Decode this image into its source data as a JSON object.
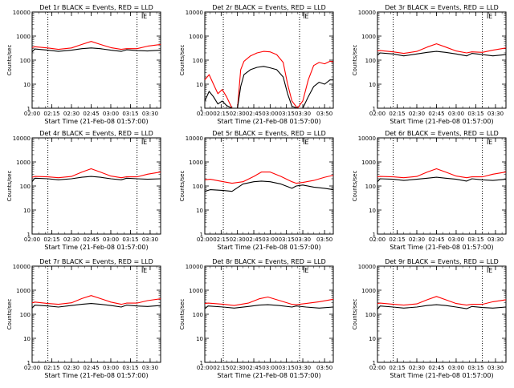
{
  "colors": {
    "events": "#000000",
    "lld": "#ff0000",
    "axis": "#000000",
    "background": "#ffffff"
  },
  "chart_data": [
    {
      "type": "line",
      "title": "Det 1r BLACK = Events, RED = LLD",
      "xlabel": "Start Time (21-Feb-08 01:57:00)",
      "ylabel": "Counts/sec",
      "yscale": "log",
      "ylim": [
        1,
        10000
      ],
      "yticks": [
        "1",
        "10",
        "100",
        "1000",
        "10000"
      ],
      "xlim": [
        "02:00",
        "03:38"
      ],
      "xticks": [
        "02:00",
        "02:15",
        "02:30",
        "02:45",
        "03:00",
        "03:15",
        "03:30"
      ],
      "vlines": [
        "02:12",
        "03:20"
      ],
      "marker_label": "E",
      "marker_x": "03:24",
      "grid": false,
      "series": [
        {
          "name": "Events",
          "color": "#000000",
          "x": [
            "02:00",
            "02:02",
            "02:12",
            "02:20",
            "02:30",
            "02:38",
            "02:45",
            "02:52",
            "03:00",
            "03:08",
            "03:12",
            "03:20",
            "03:28",
            "03:38"
          ],
          "values": [
            220,
            290,
            260,
            230,
            260,
            300,
            320,
            300,
            260,
            230,
            270,
            250,
            240,
            260
          ]
        },
        {
          "name": "LLD",
          "color": "#ff0000",
          "x": [
            "02:00",
            "02:02",
            "02:12",
            "02:20",
            "02:30",
            "02:38",
            "02:45",
            "02:52",
            "03:00",
            "03:08",
            "03:12",
            "03:20",
            "03:28",
            "03:38"
          ],
          "values": [
            330,
            360,
            320,
            280,
            320,
            450,
            600,
            450,
            330,
            280,
            300,
            300,
            380,
            450
          ]
        }
      ]
    },
    {
      "type": "line",
      "title": "Det 2r BLACK = Events, RED = LLD",
      "xlabel": "Start Time (21-Feb-08 01:57:00)",
      "ylabel": "Counts/sec",
      "yscale": "log",
      "ylim": [
        1,
        10000
      ],
      "yticks": [
        "1",
        "10",
        "100",
        "1000",
        "10000"
      ],
      "xlim": [
        "02:00",
        "03:58"
      ],
      "xticks": [
        "02:00",
        "02:15",
        "02:30",
        "02:45",
        "03:00",
        "03:15",
        "03:30",
        "03:50"
      ],
      "vlines": [
        "02:17",
        "03:27"
      ],
      "marker_label": "E",
      "marker_x": "03:31",
      "grid": false,
      "series": [
        {
          "name": "Events",
          "color": "#000000",
          "x": [
            "02:00",
            "02:04",
            "02:08",
            "02:12",
            "02:16",
            "02:20",
            "02:25",
            "02:30",
            "02:33",
            "02:36",
            "02:42",
            "02:48",
            "02:54",
            "03:00",
            "03:06",
            "03:12",
            "03:16",
            "03:20",
            "03:25",
            "03:30",
            "03:35",
            "03:40",
            "03:45",
            "03:50",
            "03:55",
            "03:58"
          ],
          "values": [
            2,
            5,
            3,
            1.5,
            2,
            1.3,
            1,
            1,
            8,
            25,
            40,
            50,
            55,
            48,
            40,
            20,
            4,
            1.2,
            1,
            1,
            3,
            8,
            12,
            10,
            15,
            15
          ]
        },
        {
          "name": "LLD",
          "color": "#ff0000",
          "x": [
            "02:00",
            "02:04",
            "02:08",
            "02:12",
            "02:16",
            "02:20",
            "02:25",
            "02:30",
            "02:33",
            "02:36",
            "02:42",
            "02:48",
            "02:54",
            "03:00",
            "03:06",
            "03:12",
            "03:16",
            "03:20",
            "03:25",
            "03:30",
            "03:35",
            "03:40",
            "03:45",
            "03:50",
            "03:55",
            "03:58"
          ],
          "values": [
            15,
            25,
            10,
            4,
            6,
            3,
            1,
            1,
            40,
            90,
            150,
            200,
            230,
            220,
            170,
            80,
            10,
            2,
            1,
            2,
            15,
            60,
            80,
            70,
            90,
            85
          ]
        }
      ]
    },
    {
      "type": "line",
      "title": "Det 3r BLACK = Events, RED = LLD",
      "xlabel": "Start Time (21-Feb-08 01:57:00)",
      "ylabel": "Counts/sec",
      "yscale": "log",
      "ylim": [
        1,
        10000
      ],
      "yticks": [
        "1",
        "10",
        "100",
        "1000",
        "10000"
      ],
      "xlim": [
        "02:00",
        "03:38"
      ],
      "xticks": [
        "02:00",
        "02:15",
        "02:30",
        "02:45",
        "03:00",
        "03:15",
        "03:30"
      ],
      "vlines": [
        "02:12",
        "03:20"
      ],
      "marker_label": "E",
      "marker_x": "03:24",
      "grid": false,
      "series": [
        {
          "name": "Events",
          "color": "#000000",
          "x": [
            "02:00",
            "02:02",
            "02:12",
            "02:20",
            "02:30",
            "02:38",
            "02:45",
            "02:52",
            "03:00",
            "03:08",
            "03:12",
            "03:20",
            "03:28",
            "03:38"
          ],
          "values": [
            160,
            200,
            180,
            150,
            180,
            210,
            230,
            210,
            180,
            150,
            190,
            170,
            150,
            170
          ]
        },
        {
          "name": "LLD",
          "color": "#ff0000",
          "x": [
            "02:00",
            "02:02",
            "02:12",
            "02:20",
            "02:30",
            "02:38",
            "02:45",
            "02:52",
            "03:00",
            "03:08",
            "03:12",
            "03:20",
            "03:28",
            "03:38"
          ],
          "values": [
            240,
            250,
            220,
            190,
            230,
            350,
            480,
            350,
            240,
            200,
            220,
            210,
            260,
            320
          ]
        }
      ]
    },
    {
      "type": "line",
      "title": "Det 4r BLACK = Events, RED = LLD",
      "xlabel": "Start Time (21-Feb-08 01:57:00)",
      "ylabel": "Counts/sec",
      "yscale": "log",
      "ylim": [
        1,
        10000
      ],
      "yticks": [
        "1",
        "10",
        "100",
        "1000",
        "10000"
      ],
      "xlim": [
        "02:00",
        "03:38"
      ],
      "xticks": [
        "02:00",
        "02:15",
        "02:30",
        "02:45",
        "03:00",
        "03:15",
        "03:30"
      ],
      "vlines": [
        "02:12",
        "03:20"
      ],
      "marker_label": "E",
      "marker_x": "03:24",
      "grid": false,
      "series": [
        {
          "name": "Events",
          "color": "#000000",
          "x": [
            "02:00",
            "02:02",
            "02:12",
            "02:20",
            "02:30",
            "02:38",
            "02:45",
            "02:52",
            "03:00",
            "03:08",
            "03:12",
            "03:20",
            "03:28",
            "03:38"
          ],
          "values": [
            150,
            210,
            200,
            180,
            200,
            230,
            250,
            230,
            200,
            180,
            210,
            200,
            190,
            200
          ]
        },
        {
          "name": "LLD",
          "color": "#ff0000",
          "x": [
            "02:00",
            "02:02",
            "02:12",
            "02:20",
            "02:30",
            "02:38",
            "02:45",
            "02:52",
            "03:00",
            "03:08",
            "03:12",
            "03:20",
            "03:28",
            "03:38"
          ],
          "values": [
            230,
            250,
            240,
            220,
            250,
            380,
            520,
            380,
            260,
            220,
            240,
            240,
            310,
            380
          ]
        }
      ]
    },
    {
      "type": "line",
      "title": "Det 5r BLACK = Events, RED = LLD",
      "xlabel": "Start Time (21-Feb-08 01:57:00)",
      "ylabel": "Counts/sec",
      "yscale": "log",
      "ylim": [
        1,
        10000
      ],
      "yticks": [
        "1",
        "10",
        "100",
        "1000",
        "10000"
      ],
      "xlim": [
        "02:00",
        "03:58"
      ],
      "xticks": [
        "02:00",
        "02:15",
        "02:30",
        "02:45",
        "03:00",
        "03:15",
        "03:30",
        "03:50"
      ],
      "vlines": [
        "02:17",
        "03:27"
      ],
      "marker_label": "E",
      "marker_x": "03:31",
      "grid": false,
      "series": [
        {
          "name": "Events",
          "color": "#000000",
          "x": [
            "02:00",
            "02:05",
            "02:17",
            "02:25",
            "02:35",
            "02:45",
            "02:52",
            "03:00",
            "03:10",
            "03:20",
            "03:24",
            "03:30",
            "03:40",
            "03:50",
            "03:58"
          ],
          "values": [
            60,
            70,
            65,
            60,
            120,
            150,
            160,
            150,
            120,
            80,
            100,
            110,
            90,
            80,
            70
          ]
        },
        {
          "name": "LLD",
          "color": "#ff0000",
          "x": [
            "02:00",
            "02:05",
            "02:17",
            "02:25",
            "02:35",
            "02:45",
            "02:52",
            "03:00",
            "03:10",
            "03:20",
            "03:24",
            "03:30",
            "03:40",
            "03:50",
            "03:58"
          ],
          "values": [
            180,
            190,
            150,
            130,
            150,
            250,
            380,
            380,
            250,
            150,
            130,
            140,
            170,
            230,
            280
          ]
        }
      ]
    },
    {
      "type": "line",
      "title": "Det 6r BLACK = Events, RED = LLD",
      "xlabel": "Start Time (21-Feb-08 01:57:00)",
      "ylabel": "Counts/sec",
      "yscale": "log",
      "ylim": [
        1,
        10000
      ],
      "yticks": [
        "1",
        "10",
        "100",
        "1000",
        "10000"
      ],
      "xlim": [
        "02:00",
        "03:38"
      ],
      "xticks": [
        "02:00",
        "02:15",
        "02:30",
        "02:45",
        "03:00",
        "03:15",
        "03:30"
      ],
      "vlines": [
        "02:12",
        "03:20"
      ],
      "marker_label": "E",
      "marker_x": "03:24",
      "grid": false,
      "series": [
        {
          "name": "Events",
          "color": "#000000",
          "x": [
            "02:00",
            "02:02",
            "02:12",
            "02:20",
            "02:30",
            "02:38",
            "02:45",
            "02:52",
            "03:00",
            "03:08",
            "03:12",
            "03:20",
            "03:28",
            "03:38"
          ],
          "values": [
            150,
            200,
            190,
            170,
            190,
            210,
            230,
            210,
            190,
            160,
            200,
            180,
            170,
            190
          ]
        },
        {
          "name": "LLD",
          "color": "#ff0000",
          "x": [
            "02:00",
            "02:02",
            "02:12",
            "02:20",
            "02:30",
            "02:38",
            "02:45",
            "02:52",
            "03:00",
            "03:08",
            "03:12",
            "03:20",
            "03:28",
            "03:38"
          ],
          "values": [
            240,
            250,
            240,
            220,
            250,
            380,
            520,
            380,
            260,
            220,
            240,
            240,
            310,
            380
          ]
        }
      ]
    },
    {
      "type": "line",
      "title": "Det 7r BLACK = Events, RED = LLD",
      "xlabel": "Start Time (21-Feb-08 01:57:00)",
      "ylabel": "Counts/sec",
      "yscale": "log",
      "ylim": [
        1,
        10000
      ],
      "yticks": [
        "1",
        "10",
        "100",
        "1000",
        "10000"
      ],
      "xlim": [
        "02:00",
        "03:38"
      ],
      "xticks": [
        "02:00",
        "02:15",
        "02:30",
        "02:45",
        "03:00",
        "03:15",
        "03:30"
      ],
      "vlines": [
        "02:12",
        "03:20"
      ],
      "marker_label": "E",
      "marker_x": "03:24",
      "grid": false,
      "series": [
        {
          "name": "Events",
          "color": "#000000",
          "x": [
            "02:00",
            "02:02",
            "02:12",
            "02:20",
            "02:30",
            "02:38",
            "02:45",
            "02:52",
            "03:00",
            "03:08",
            "03:12",
            "03:20",
            "03:28",
            "03:38"
          ],
          "values": [
            180,
            240,
            220,
            200,
            230,
            260,
            280,
            260,
            230,
            200,
            240,
            220,
            210,
            230
          ]
        },
        {
          "name": "LLD",
          "color": "#ff0000",
          "x": [
            "02:00",
            "02:02",
            "02:12",
            "02:20",
            "02:30",
            "02:38",
            "02:45",
            "02:52",
            "03:00",
            "03:08",
            "03:12",
            "03:20",
            "03:28",
            "03:38"
          ],
          "values": [
            300,
            320,
            280,
            260,
            300,
            450,
            600,
            450,
            320,
            260,
            290,
            290,
            370,
            440
          ]
        }
      ]
    },
    {
      "type": "line",
      "title": "Det 8r BLACK = Events, RED = LLD",
      "xlabel": "Start Time (21-Feb-08 01:57:00)",
      "ylabel": "Counts/sec",
      "yscale": "log",
      "ylim": [
        1,
        10000
      ],
      "yticks": [
        "1",
        "10",
        "100",
        "1000",
        "10000"
      ],
      "xlim": [
        "02:00",
        "03:58"
      ],
      "xticks": [
        "02:00",
        "02:15",
        "02:30",
        "02:45",
        "03:00",
        "03:15",
        "03:30",
        "03:50"
      ],
      "vlines": [
        "02:17",
        "03:27"
      ],
      "marker_label": "E",
      "marker_x": "03:31",
      "grid": false,
      "series": [
        {
          "name": "Events",
          "color": "#000000",
          "x": [
            "02:00",
            "02:03",
            "02:17",
            "02:27",
            "02:40",
            "02:50",
            "02:58",
            "03:08",
            "03:20",
            "03:24",
            "03:33",
            "03:45",
            "03:58"
          ],
          "values": [
            170,
            220,
            200,
            180,
            210,
            240,
            250,
            230,
            200,
            220,
            200,
            180,
            200
          ]
        },
        {
          "name": "LLD",
          "color": "#ff0000",
          "x": [
            "02:00",
            "02:03",
            "02:17",
            "02:27",
            "02:40",
            "02:50",
            "02:58",
            "03:08",
            "03:20",
            "03:24",
            "03:33",
            "03:45",
            "03:58"
          ],
          "values": [
            280,
            290,
            260,
            230,
            290,
            440,
            520,
            380,
            260,
            250,
            280,
            330,
            420
          ]
        }
      ]
    },
    {
      "type": "line",
      "title": "Det 9r BLACK = Events, RED = LLD",
      "xlabel": "Start Time (21-Feb-08 01:57:00)",
      "ylabel": "Counts/sec",
      "yscale": "log",
      "ylim": [
        1,
        10000
      ],
      "yticks": [
        "1",
        "10",
        "100",
        "1000",
        "10000"
      ],
      "xlim": [
        "02:00",
        "03:38"
      ],
      "xticks": [
        "02:00",
        "02:15",
        "02:30",
        "02:45",
        "03:00",
        "03:15",
        "03:30"
      ],
      "vlines": [
        "02:12",
        "03:20"
      ],
      "marker_label": "E",
      "marker_x": "03:24",
      "grid": false,
      "series": [
        {
          "name": "Events",
          "color": "#000000",
          "x": [
            "02:00",
            "02:02",
            "02:12",
            "02:20",
            "02:30",
            "02:38",
            "02:45",
            "02:52",
            "03:00",
            "03:08",
            "03:12",
            "03:20",
            "03:28",
            "03:38"
          ],
          "values": [
            160,
            220,
            200,
            180,
            200,
            230,
            250,
            230,
            200,
            170,
            210,
            190,
            180,
            200
          ]
        },
        {
          "name": "LLD",
          "color": "#ff0000",
          "x": [
            "02:00",
            "02:02",
            "02:12",
            "02:20",
            "02:30",
            "02:38",
            "02:45",
            "02:52",
            "03:00",
            "03:08",
            "03:12",
            "03:20",
            "03:28",
            "03:38"
          ],
          "values": [
            280,
            290,
            260,
            240,
            270,
            400,
            550,
            400,
            280,
            240,
            260,
            260,
            330,
            400
          ]
        }
      ]
    }
  ]
}
